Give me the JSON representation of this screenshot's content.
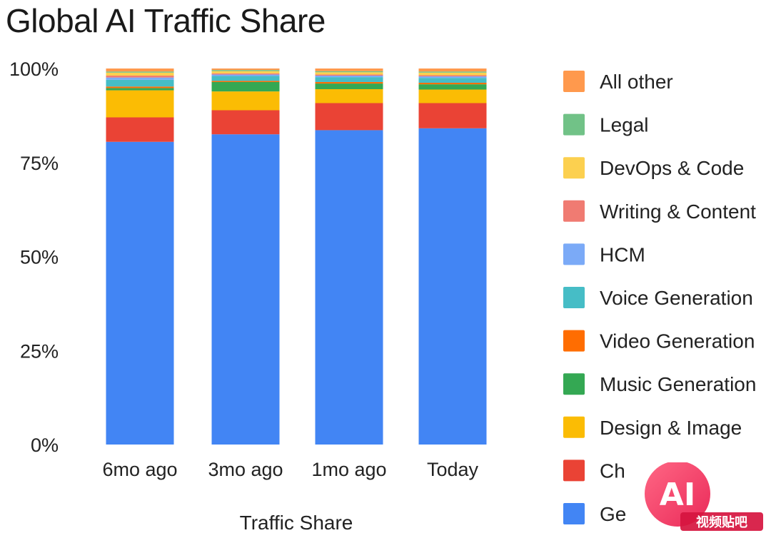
{
  "title": "Global AI Traffic Share",
  "watermark_text": "AI 视频贴吧",
  "chart_data": {
    "type": "bar",
    "stacked": true,
    "title": "Global AI Traffic Share",
    "xlabel": "Traffic Share",
    "ylabel": "",
    "ylim": [
      0,
      100
    ],
    "yticks": [
      0,
      25,
      50,
      75,
      100
    ],
    "ytick_labels": [
      "0%",
      "25%",
      "50%",
      "75%",
      "100%"
    ],
    "categories": [
      "6mo ago",
      "3mo ago",
      "1mo ago",
      "Today"
    ],
    "legend_position": "right",
    "series": [
      {
        "name": "Ge",
        "color": "#4285F4",
        "values": [
          80.5,
          82.5,
          83.6,
          84.1
        ]
      },
      {
        "name": "Ch",
        "color": "#EA4335",
        "values": [
          6.5,
          6.4,
          7.2,
          6.7
        ]
      },
      {
        "name": "Design & Image",
        "color": "#FBBC04",
        "values": [
          7.2,
          5.0,
          3.7,
          3.6
        ]
      },
      {
        "name": "Music Generation",
        "color": "#34A853",
        "values": [
          0.6,
          2.5,
          1.5,
          1.4
        ]
      },
      {
        "name": "Video Generation",
        "color": "#FF6D01",
        "values": [
          0.4,
          0.3,
          0.4,
          0.4
        ]
      },
      {
        "name": "Voice Generation",
        "color": "#46BDC6",
        "values": [
          1.8,
          1.3,
          1.3,
          1.3
        ]
      },
      {
        "name": "HCM",
        "color": "#7BAAF7",
        "values": [
          0.6,
          0.4,
          0.4,
          0.4
        ]
      },
      {
        "name": "Writing & Content",
        "color": "#F07B72",
        "values": [
          0.5,
          0.3,
          0.3,
          0.3
        ]
      },
      {
        "name": "DevOps & Code",
        "color": "#FCD04F",
        "values": [
          0.8,
          0.6,
          0.6,
          0.7
        ]
      },
      {
        "name": "Legal",
        "color": "#71C287",
        "values": [
          0.3,
          0.3,
          0.3,
          0.3
        ]
      },
      {
        "name": "All other",
        "color": "#FF994D",
        "values": [
          0.8,
          0.4,
          0.7,
          0.8
        ]
      }
    ]
  }
}
